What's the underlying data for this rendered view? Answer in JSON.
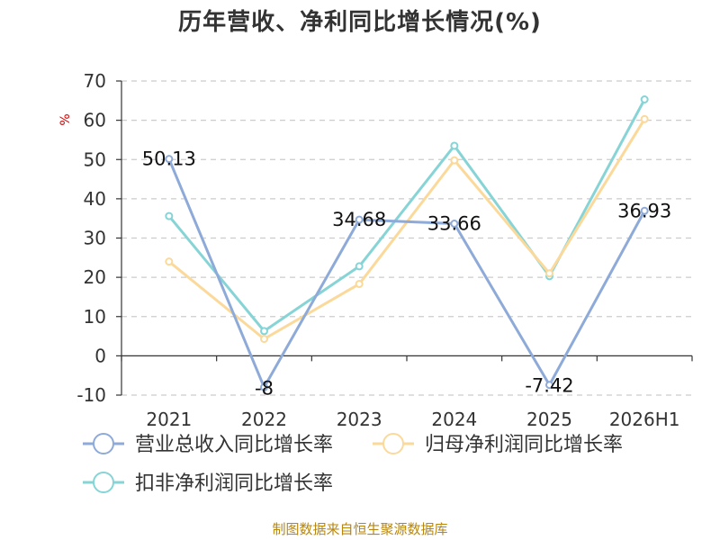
{
  "chart_data": {
    "type": "line",
    "title": "历年营收、净利同比增长情况(%)",
    "ylabel": "%",
    "categories": [
      "2021",
      "2022",
      "2023",
      "2024",
      "2025",
      "2026H1"
    ],
    "ylim": [
      -10,
      70
    ],
    "yticks": [
      -10,
      0,
      10,
      20,
      30,
      40,
      50,
      60,
      70
    ],
    "grid": true,
    "legend_position": "bottom",
    "series": [
      {
        "name": "营业总收入同比增长率",
        "values": [
          50.13,
          -8,
          34.68,
          33.66,
          -7.42,
          36.93
        ],
        "labels": [
          "50.13",
          "-8",
          "34.68",
          "33.66",
          "-7.42",
          "36.93"
        ],
        "color": "#8eaad8"
      },
      {
        "name": "归母净利润同比增长率",
        "values": [
          24,
          4.3,
          18.3,
          49.8,
          21,
          60.3
        ],
        "color": "#fbd99a"
      },
      {
        "name": "扣非净利润同比增长率",
        "values": [
          35.6,
          6.3,
          22.8,
          53.5,
          20.3,
          65.3
        ],
        "color": "#86d4d6"
      }
    ]
  },
  "source": "制图数据来自恒生聚源数据库",
  "colors": {
    "axis": "#333333",
    "grid": "#cccccc",
    "unit": "#cc0000",
    "source": "#b8860b"
  }
}
